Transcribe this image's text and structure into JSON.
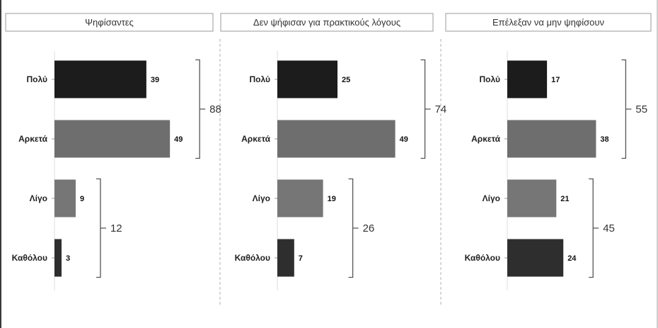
{
  "colors": {
    "dark": "#1c1c1c",
    "mid": "#6e6e6e",
    "light": "#767676",
    "darkgray": "#2e2e2e"
  },
  "chart_data": [
    {
      "type": "bar",
      "orientation": "horizontal",
      "title": "Ψηφίσαντες",
      "categories": [
        "Πολύ",
        "Αρκετά",
        "Λίγο",
        "Καθόλου"
      ],
      "values": [
        39,
        49,
        9,
        3
      ],
      "bar_colors": [
        "#1c1c1c",
        "#6e6e6e",
        "#767676",
        "#2e2e2e"
      ],
      "groups": [
        {
          "categories": [
            "Πολύ",
            "Αρκετά"
          ],
          "total": 88
        },
        {
          "categories": [
            "Λίγο",
            "Καθόλου"
          ],
          "total": 12
        }
      ],
      "xlim": [
        0,
        55
      ]
    },
    {
      "type": "bar",
      "orientation": "horizontal",
      "title": "Δεν ψήφισαν για πρακτικούς λόγους",
      "categories": [
        "Πολύ",
        "Αρκετά",
        "Λίγο",
        "Καθόλου"
      ],
      "values": [
        25,
        49,
        19,
        7
      ],
      "bar_colors": [
        "#1c1c1c",
        "#6e6e6e",
        "#767676",
        "#2e2e2e"
      ],
      "groups": [
        {
          "categories": [
            "Πολύ",
            "Αρκετά"
          ],
          "total": 74
        },
        {
          "categories": [
            "Λίγο",
            "Καθόλου"
          ],
          "total": 26
        }
      ],
      "xlim": [
        0,
        55
      ]
    },
    {
      "type": "bar",
      "orientation": "horizontal",
      "title": "Επέλεξαν να μην ψηφίσουν",
      "categories": [
        "Πολύ",
        "Αρκετά",
        "Λίγο",
        "Καθόλου"
      ],
      "values": [
        17,
        38,
        21,
        24
      ],
      "bar_colors": [
        "#1c1c1c",
        "#6e6e6e",
        "#767676",
        "#2e2e2e"
      ],
      "groups": [
        {
          "categories": [
            "Πολύ",
            "Αρκετά"
          ],
          "total": 55
        },
        {
          "categories": [
            "Λίγο",
            "Καθόλου"
          ],
          "total": 45
        }
      ],
      "xlim": [
        0,
        55
      ]
    }
  ]
}
